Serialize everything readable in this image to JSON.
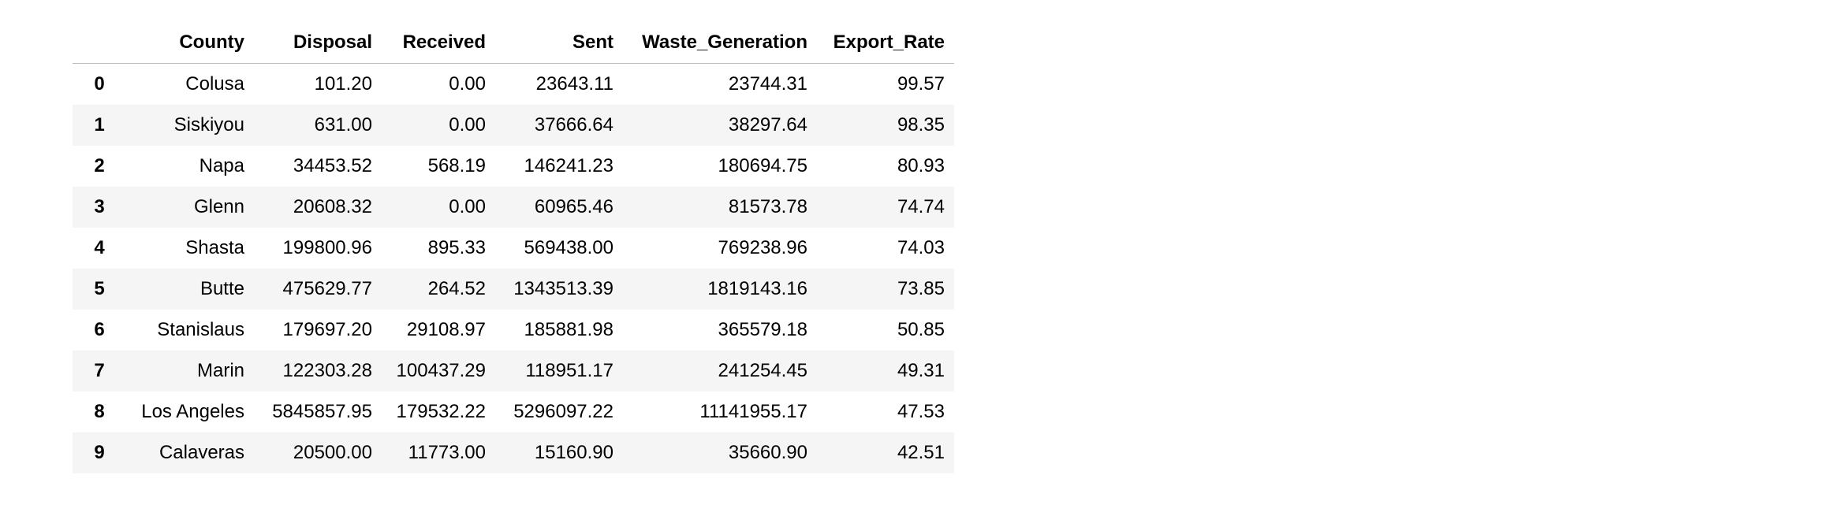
{
  "table": {
    "index_header": "",
    "columns": [
      "County",
      "Disposal",
      "Received",
      "Sent",
      "Waste_Generation",
      "Export_Rate"
    ],
    "rows": [
      {
        "index": "0",
        "cells": [
          "Colusa",
          "101.20",
          "0.00",
          "23643.11",
          "23744.31",
          "99.57"
        ]
      },
      {
        "index": "1",
        "cells": [
          "Siskiyou",
          "631.00",
          "0.00",
          "37666.64",
          "38297.64",
          "98.35"
        ]
      },
      {
        "index": "2",
        "cells": [
          "Napa",
          "34453.52",
          "568.19",
          "146241.23",
          "180694.75",
          "80.93"
        ]
      },
      {
        "index": "3",
        "cells": [
          "Glenn",
          "20608.32",
          "0.00",
          "60965.46",
          "81573.78",
          "74.74"
        ]
      },
      {
        "index": "4",
        "cells": [
          "Shasta",
          "199800.96",
          "895.33",
          "569438.00",
          "769238.96",
          "74.03"
        ]
      },
      {
        "index": "5",
        "cells": [
          "Butte",
          "475629.77",
          "264.52",
          "1343513.39",
          "1819143.16",
          "73.85"
        ]
      },
      {
        "index": "6",
        "cells": [
          "Stanislaus",
          "179697.20",
          "29108.97",
          "185881.98",
          "365579.18",
          "50.85"
        ]
      },
      {
        "index": "7",
        "cells": [
          "Marin",
          "122303.28",
          "100437.29",
          "118951.17",
          "241254.45",
          "49.31"
        ]
      },
      {
        "index": "8",
        "cells": [
          "Los Angeles",
          "5845857.95",
          "179532.22",
          "5296097.22",
          "11141955.17",
          "47.53"
        ]
      },
      {
        "index": "9",
        "cells": [
          "Calaveras",
          "20500.00",
          "11773.00",
          "15160.90",
          "35660.90",
          "42.51"
        ]
      }
    ]
  }
}
